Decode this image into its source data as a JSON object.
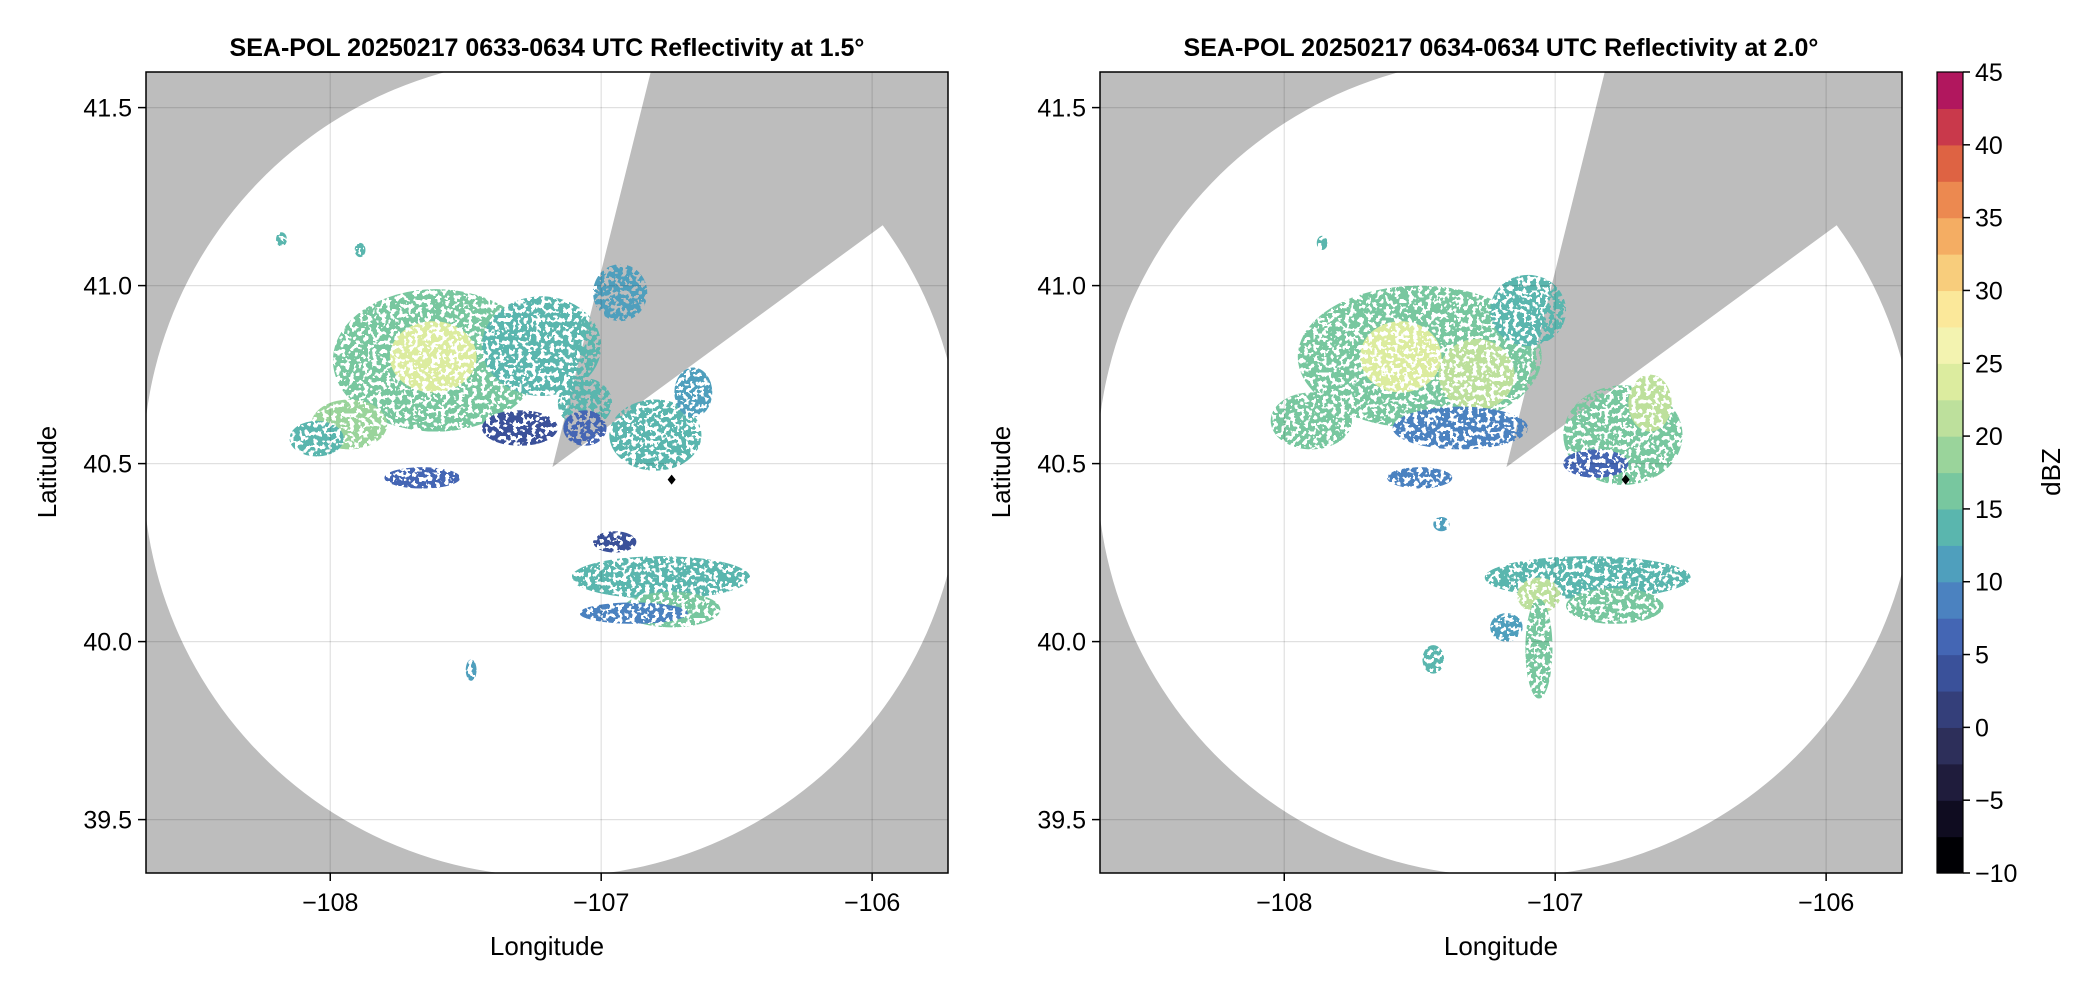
{
  "chart_data": [
    {
      "type": "heatmap",
      "title": "SEA-POL 20250217 0633-0634 UTC Reflectivity at 1.5°",
      "xlabel": "Longitude",
      "ylabel": "Latitude",
      "xlim": [
        -108.68,
        -105.72
      ],
      "ylim": [
        39.35,
        41.6
      ],
      "xticks": [
        -108,
        -107,
        -106
      ],
      "xtick_labels": [
        "−108",
        "−107",
        "−106"
      ],
      "yticks": [
        39.5,
        40.0,
        40.5,
        41.0,
        41.5
      ],
      "ytick_labels": [
        "39.5",
        "40.0",
        "40.5",
        "41.0",
        "41.5"
      ],
      "grid": true,
      "background_color": "#bdbdbd",
      "radar_center": [
        -107.18,
        40.49
      ],
      "radar_range_deg": 1.15,
      "blocked_sector": {
        "points": [
          [
            -106.84,
            41.53
          ],
          [
            -106.05,
            41.12
          ]
        ]
      },
      "marker": {
        "lon": -106.74,
        "lat": 40.455,
        "color": "#000000"
      },
      "echoes": [
        {
          "lon": -107.61,
          "lat": 40.79,
          "rx": 0.38,
          "ry": 0.2,
          "dbz": 16
        },
        {
          "lon": -107.62,
          "lat": 40.8,
          "rx": 0.16,
          "ry": 0.1,
          "dbz": 24
        },
        {
          "lon": -107.22,
          "lat": 40.83,
          "rx": 0.22,
          "ry": 0.14,
          "dbz": 14
        },
        {
          "lon": -106.93,
          "lat": 40.98,
          "rx": 0.1,
          "ry": 0.08,
          "dbz": 12
        },
        {
          "lon": -107.06,
          "lat": 40.67,
          "rx": 0.1,
          "ry": 0.07,
          "dbz": 14
        },
        {
          "lon": -107.3,
          "lat": 40.6,
          "rx": 0.14,
          "ry": 0.05,
          "dbz": 4
        },
        {
          "lon": -107.06,
          "lat": 40.6,
          "rx": 0.08,
          "ry": 0.05,
          "dbz": 6
        },
        {
          "lon": -107.93,
          "lat": 40.61,
          "rx": 0.14,
          "ry": 0.07,
          "dbz": 18
        },
        {
          "lon": -108.05,
          "lat": 40.57,
          "rx": 0.1,
          "ry": 0.05,
          "dbz": 13
        },
        {
          "lon": -107.66,
          "lat": 40.46,
          "rx": 0.14,
          "ry": 0.03,
          "dbz": 6
        },
        {
          "lon": -106.8,
          "lat": 40.58,
          "rx": 0.17,
          "ry": 0.1,
          "dbz": 14
        },
        {
          "lon": -106.66,
          "lat": 40.7,
          "rx": 0.07,
          "ry": 0.07,
          "dbz": 12
        },
        {
          "lon": -106.78,
          "lat": 40.18,
          "rx": 0.33,
          "ry": 0.06,
          "dbz": 13
        },
        {
          "lon": -106.74,
          "lat": 40.09,
          "rx": 0.18,
          "ry": 0.05,
          "dbz": 15
        },
        {
          "lon": -106.88,
          "lat": 40.08,
          "rx": 0.2,
          "ry": 0.03,
          "dbz": 9
        },
        {
          "lon": -106.95,
          "lat": 40.28,
          "rx": 0.08,
          "ry": 0.03,
          "dbz": 3
        },
        {
          "lon": -107.48,
          "lat": 39.92,
          "rx": 0.02,
          "ry": 0.03,
          "dbz": 12
        },
        {
          "lon": -108.18,
          "lat": 41.13,
          "rx": 0.02,
          "ry": 0.02,
          "dbz": 14
        },
        {
          "lon": -107.89,
          "lat": 41.1,
          "rx": 0.02,
          "ry": 0.02,
          "dbz": 14
        }
      ]
    },
    {
      "type": "heatmap",
      "title": "SEA-POL 20250217 0634-0634 UTC Reflectivity at 2.0°",
      "xlabel": "Longitude",
      "ylabel": "Latitude",
      "xlim": [
        -108.68,
        -105.72
      ],
      "ylim": [
        39.35,
        41.6
      ],
      "xticks": [
        -108,
        -107,
        -106
      ],
      "xtick_labels": [
        "−108",
        "−107",
        "−106"
      ],
      "yticks": [
        39.5,
        40.0,
        40.5,
        41.0,
        41.5
      ],
      "ytick_labels": [
        "39.5",
        "40.0",
        "40.5",
        "41.0",
        "41.5"
      ],
      "grid": true,
      "background_color": "#bdbdbd",
      "radar_center": [
        -107.18,
        40.49
      ],
      "radar_range_deg": 1.15,
      "blocked_sector": {
        "points": [
          [
            -106.84,
            41.53
          ],
          [
            -106.05,
            41.12
          ]
        ]
      },
      "marker": {
        "lon": -106.74,
        "lat": 40.455,
        "color": "#000000"
      },
      "echoes": [
        {
          "lon": -107.5,
          "lat": 40.8,
          "rx": 0.45,
          "ry": 0.2,
          "dbz": 16
        },
        {
          "lon": -107.57,
          "lat": 40.8,
          "rx": 0.15,
          "ry": 0.1,
          "dbz": 24
        },
        {
          "lon": -107.29,
          "lat": 40.75,
          "rx": 0.14,
          "ry": 0.1,
          "dbz": 20
        },
        {
          "lon": -107.1,
          "lat": 40.93,
          "rx": 0.14,
          "ry": 0.1,
          "dbz": 14
        },
        {
          "lon": -107.35,
          "lat": 40.6,
          "rx": 0.25,
          "ry": 0.06,
          "dbz": 8
        },
        {
          "lon": -107.9,
          "lat": 40.62,
          "rx": 0.15,
          "ry": 0.08,
          "dbz": 16
        },
        {
          "lon": -106.75,
          "lat": 40.58,
          "rx": 0.22,
          "ry": 0.14,
          "dbz": 16
        },
        {
          "lon": -106.65,
          "lat": 40.67,
          "rx": 0.08,
          "ry": 0.08,
          "dbz": 20
        },
        {
          "lon": -106.85,
          "lat": 40.5,
          "rx": 0.12,
          "ry": 0.04,
          "dbz": 6
        },
        {
          "lon": -107.5,
          "lat": 40.46,
          "rx": 0.12,
          "ry": 0.03,
          "dbz": 8
        },
        {
          "lon": -106.88,
          "lat": 40.18,
          "rx": 0.38,
          "ry": 0.06,
          "dbz": 14
        },
        {
          "lon": -106.78,
          "lat": 40.1,
          "rx": 0.18,
          "ry": 0.05,
          "dbz": 16
        },
        {
          "lon": -107.06,
          "lat": 40.13,
          "rx": 0.08,
          "ry": 0.05,
          "dbz": 22
        },
        {
          "lon": -107.06,
          "lat": 39.98,
          "rx": 0.05,
          "ry": 0.14,
          "dbz": 16
        },
        {
          "lon": -107.18,
          "lat": 40.04,
          "rx": 0.06,
          "ry": 0.04,
          "dbz": 12
        },
        {
          "lon": -107.45,
          "lat": 39.95,
          "rx": 0.04,
          "ry": 0.04,
          "dbz": 14
        },
        {
          "lon": -107.42,
          "lat": 40.33,
          "rx": 0.03,
          "ry": 0.02,
          "dbz": 10
        },
        {
          "lon": -107.86,
          "lat": 41.12,
          "rx": 0.02,
          "ry": 0.02,
          "dbz": 14
        }
      ]
    }
  ],
  "colorbar": {
    "label": "dBZ",
    "min": -10,
    "max": 45,
    "step": 2.5,
    "ticks": [
      45,
      40,
      35,
      30,
      25,
      20,
      15,
      10,
      5,
      0,
      -5,
      -10
    ],
    "tick_labels": [
      "45",
      "40",
      "35",
      "30",
      "25",
      "20",
      "15",
      "10",
      "5",
      "0",
      "−5",
      "−10"
    ],
    "colors": [
      "#000004",
      "#0f0c20",
      "#1f1c3c",
      "#2d2f5a",
      "#343f7a",
      "#3a519a",
      "#4466b4",
      "#4b82c0",
      "#4f9fbd",
      "#5ab6ae",
      "#78c79f",
      "#9ad49b",
      "#bde09c",
      "#dcec9f",
      "#f3f3b0",
      "#fbe89a",
      "#f8cd7c",
      "#f4ad63",
      "#ec8950",
      "#de6343",
      "#c9394b",
      "#b1175e",
      "#c83b80",
      "#e161a0",
      "#f28dbd",
      "#f3b4d8",
      "#d6a3d3",
      "#b77fc0",
      "#9559a8",
      "#6f348f",
      "#4a0e6e"
    ]
  }
}
